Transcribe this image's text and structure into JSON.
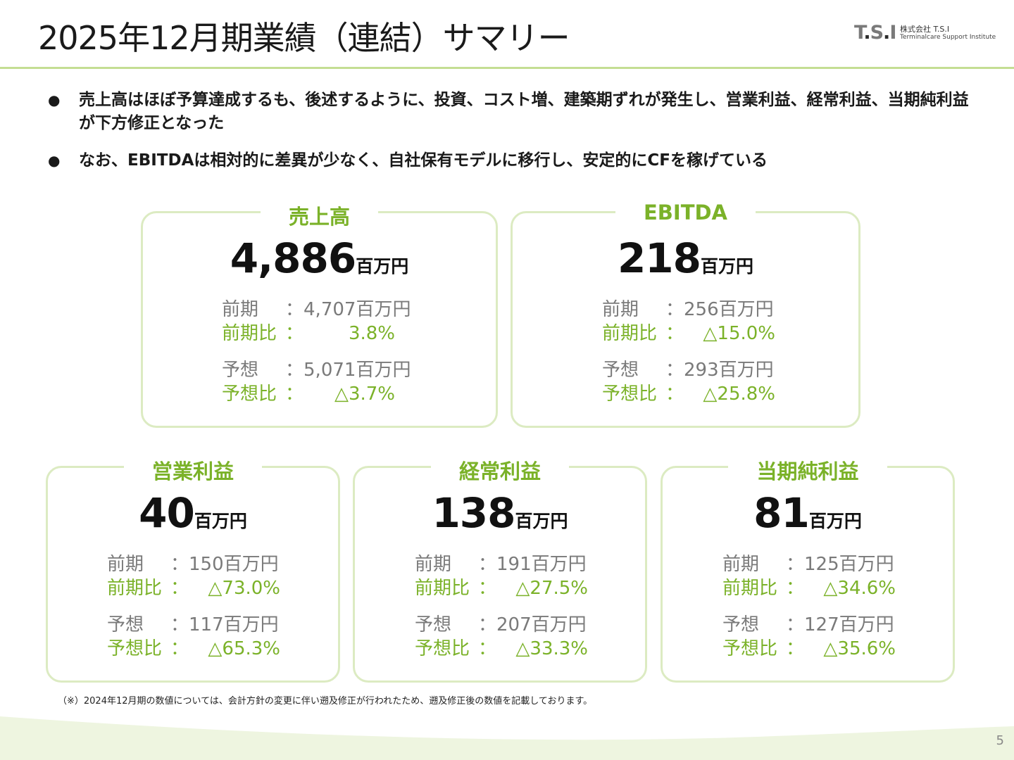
{
  "title": "2025年12月期業績（連結）サマリー",
  "logo": {
    "mark": "T.S.I",
    "company": "株式会社 T.S.I",
    "subtitle": "Terminalcare Support Institute"
  },
  "bullets": [
    "売上高はほぼ予算達成するも、後述するように、投資、コスト増、建築期ずれが発生し、営業利益、経常利益、当期純利益が下方修正となった",
    "なお、EBITDAは相対的に差異が少なく、自社保有モデルに移行し、安定的にCFを稼げている"
  ],
  "unit": "百万円",
  "labels": {
    "prev": "前期",
    "prev_ratio": "前期比",
    "forecast": "予想",
    "forecast_ratio": "予想比",
    "colon": "：",
    "colon_ratio": "："
  },
  "cards": [
    {
      "title": "売上高",
      "value": "4,886",
      "prev": "4,707百万円",
      "prev_ratio": "3.8%",
      "forecast": "5,071百万円",
      "forecast_ratio": "△3.7%"
    },
    {
      "title": "EBITDA",
      "value": "218",
      "prev": "256百万円",
      "prev_ratio": "△15.0%",
      "forecast": "293百万円",
      "forecast_ratio": "△25.8%"
    },
    {
      "title": "営業利益",
      "value": "40",
      "prev": "150百万円",
      "prev_ratio": "△73.0%",
      "forecast": "117百万円",
      "forecast_ratio": "△65.3%"
    },
    {
      "title": "経常利益",
      "value": "138",
      "prev": "191百万円",
      "prev_ratio": "△27.5%",
      "forecast": "207百万円",
      "forecast_ratio": "△33.3%"
    },
    {
      "title": "当期純利益",
      "value": "81",
      "prev": "125百万円",
      "prev_ratio": "△34.6%",
      "forecast": "127百万円",
      "forecast_ratio": "△35.6%"
    }
  ],
  "footnote": "（※）2024年12月期の数値については、会計方針の変更に伴い遡及修正が行われたため、遡及修正後の数値を記載しております。",
  "page_number": "5",
  "colors": {
    "accent_green": "#7bb229",
    "card_border": "#dcebc2",
    "header_line": "#c4de93",
    "footer_wave": "#eef5e0"
  }
}
